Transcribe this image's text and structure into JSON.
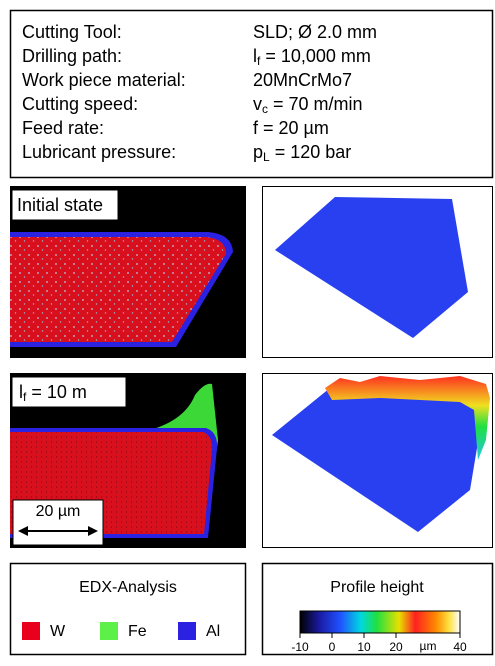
{
  "parameters": [
    {
      "label": "Cutting Tool:",
      "value": "SLD; Ø 2.0 mm"
    },
    {
      "label": "Drilling path:",
      "value": {
        "base": "l",
        "sub": "f",
        "text": " = 10,000 mm"
      }
    },
    {
      "label": "Work piece material:",
      "value": "20MnCrMo7"
    },
    {
      "label": "Cutting speed:",
      "value": {
        "base": "v",
        "sub": "c",
        "text": " = 70 m/min"
      }
    },
    {
      "label": "Feed rate:",
      "value": "f = 20 µm"
    },
    {
      "label": "Lubricant pressure:",
      "value": {
        "base": "p",
        "sub": "L",
        "text": " = 120 bar"
      }
    }
  ],
  "panels": {
    "initial_label": "Initial state",
    "worn_label": {
      "base": "l",
      "sub": "f",
      "text": " = 10 m"
    },
    "scale_bar": "20 µm"
  },
  "edx_legend": {
    "title": "EDX-Analysis",
    "items": [
      {
        "name": "W",
        "color": "#e8001c"
      },
      {
        "name": "Fe",
        "color": "#5cf048"
      },
      {
        "name": "Al",
        "color": "#2a22e0"
      }
    ]
  },
  "profile_legend": {
    "title": "Profile height",
    "lim": [
      -10,
      40
    ],
    "ticks": [
      -10,
      0,
      10,
      20,
      40
    ],
    "unit": "µm"
  }
}
